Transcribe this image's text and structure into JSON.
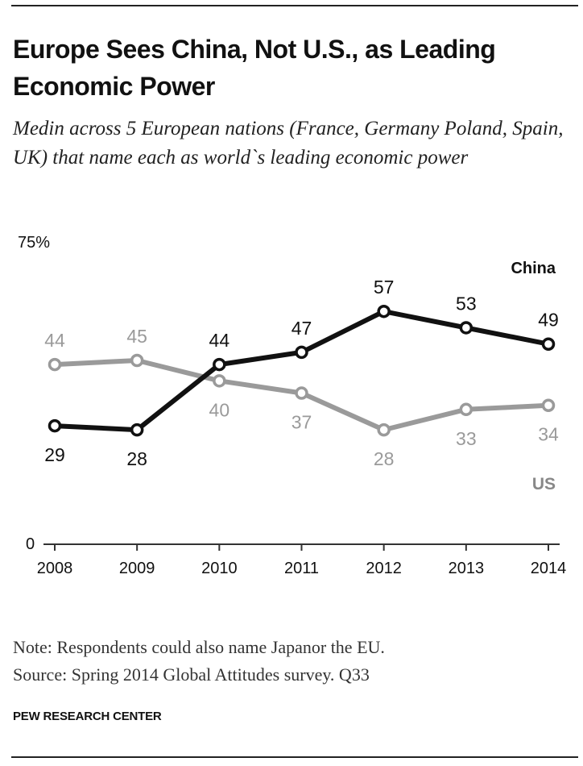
{
  "header": {
    "title": "Europe Sees China, Not U.S., as Leading Economic Power",
    "subtitle": "Medin across 5 European nations (France, Germany Poland, Spain, UK) that name each as world`s leading economic power"
  },
  "footer": {
    "note": "Note: Respondents could also name Japanor the EU.",
    "source": "Source: Spring 2014 Global Attitudes survey. Q33",
    "brand": "PEW RESEARCH CENTER"
  },
  "colors": {
    "china": "#111111",
    "us": "#9a9a9a"
  },
  "chart_data": {
    "type": "line",
    "title": "Europe Sees China, Not U.S., as Leading Economic Power",
    "subtitle": "Medin across 5 European nations (France, Germany Poland, Spain, UK) that name each as world`s leading economic power",
    "xlabel": "",
    "ylabel": "",
    "x": [
      "2008",
      "2009",
      "2010",
      "2011",
      "2012",
      "2013",
      "2014"
    ],
    "ylim": [
      0,
      75
    ],
    "y_tick_labels": [
      "0",
      "75%"
    ],
    "grid": false,
    "legend": "direct labels at line ends",
    "series": [
      {
        "name": "China",
        "values": [
          29,
          28,
          44,
          47,
          57,
          53,
          49
        ],
        "color": "#111111"
      },
      {
        "name": "US",
        "values": [
          44,
          45,
          40,
          37,
          28,
          33,
          34
        ],
        "color": "#9a9a9a"
      }
    ]
  }
}
